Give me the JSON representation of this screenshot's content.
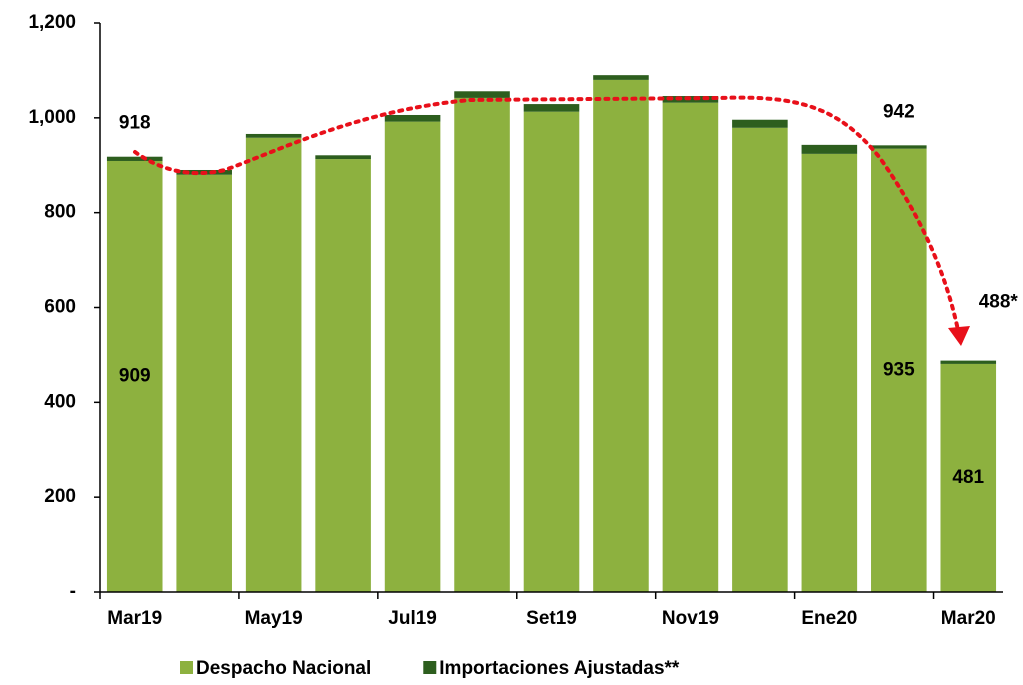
{
  "chart_data": {
    "type": "stacked_bar",
    "categories": [
      "Mar19",
      null,
      "May19",
      null,
      "Jul19",
      null,
      "Set19",
      null,
      "Nov19",
      null,
      "Ene20",
      null,
      "Mar20"
    ],
    "series": [
      {
        "name": "Despacho Nacional",
        "color": "#8DB13F",
        "values": [
          909,
          880,
          958,
          913,
          992,
          1042,
          1013,
          1080,
          1032,
          979,
          924,
          935,
          481
        ],
        "value_labels": [
          "909",
          null,
          null,
          null,
          null,
          null,
          null,
          null,
          null,
          null,
          null,
          "935",
          "481"
        ]
      },
      {
        "name": "Importaciones Ajustadas**",
        "color": "#2D5E1E",
        "values": [
          9,
          10,
          8,
          8,
          14,
          14,
          16,
          10,
          14,
          17,
          19,
          7,
          7
        ]
      }
    ],
    "total_labels": [
      "918",
      null,
      null,
      null,
      null,
      null,
      null,
      null,
      null,
      null,
      null,
      "942",
      "488*"
    ],
    "ylim": [
      0,
      1200
    ],
    "yticks": [
      {
        "value": 0,
        "label": "-"
      },
      200,
      400,
      600,
      800,
      {
        "value": 1000,
        "label": "1,000"
      },
      {
        "value": 1200,
        "label": "1,200"
      }
    ],
    "legend": "bottom"
  }
}
